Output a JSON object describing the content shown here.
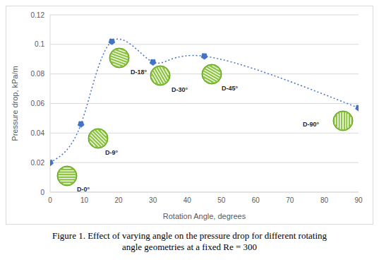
{
  "chart_data": {
    "type": "line",
    "title": "Figure 1. Effect of varying angle on the pressure drop for different rotating angle geometries at a fixed Re = 300",
    "x_label": "Rotation Angle, degrees",
    "y_label": "Pressure drop, kPa/m",
    "x": [
      0,
      9,
      18,
      30,
      45,
      90
    ],
    "values": [
      0.02,
      0.046,
      0.102,
      0.088,
      0.092,
      0.057
    ],
    "color": "#4472c4",
    "marker": "circle",
    "line_style": "dotted",
    "xlim": [
      0,
      90
    ],
    "xticks": [
      0,
      10,
      20,
      30,
      40,
      50,
      60,
      70,
      80,
      90
    ],
    "ylim": [
      0,
      0.12
    ],
    "yticks": [
      0,
      0.02,
      0.04,
      0.06,
      0.08,
      0.1,
      0.12
    ],
    "grid": true,
    "annotations": [
      "D-0°",
      "D-9°",
      "D-18°",
      "D-30°",
      "D-45°",
      "D-90°"
    ]
  }
}
